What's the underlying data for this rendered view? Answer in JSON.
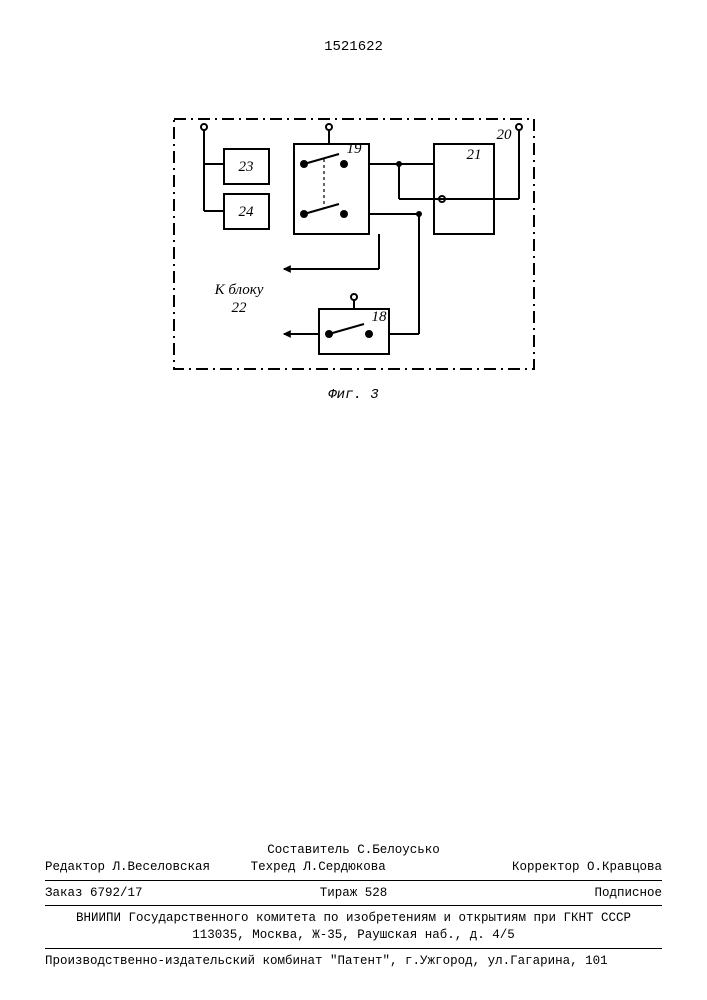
{
  "document": {
    "number": "1521622",
    "figure_caption": "Фиг. 3"
  },
  "diagram": {
    "outer_label": "20",
    "block1_label": "23",
    "block2_label": "24",
    "switch_block1_label": "19",
    "block3_label": "21",
    "switch_block2_label": "18",
    "side_text_line1": "К блоку",
    "side_text_line2": "22",
    "stroke_color": "#000000",
    "stroke_width": 2,
    "font_family": "serif",
    "font_size": 15,
    "font_style": "italic"
  },
  "credits": {
    "editor_label": "Редактор",
    "editor_name": "Л.Веселовская",
    "compiler_label": "Составитель",
    "compiler_name": "С.Белоусько",
    "techred_label": "Техред",
    "techred_name": "Л.Сердюкова",
    "corrector_label": "Корректор",
    "corrector_name": "О.Кравцова",
    "order_label": "Заказ",
    "order_value": "6792/17",
    "tirage_label": "Тираж",
    "tirage_value": "528",
    "subscription": "Подписное",
    "org_line1": "ВНИИПИ Государственного комитета по изобретениям и открытиям при ГКНТ СССР",
    "org_line2": "113035, Москва, Ж-35, Раушская наб., д. 4/5",
    "publisher": "Производственно-издательский комбинат \"Патент\", г.Ужгород, ул.Гагарина, 101"
  }
}
